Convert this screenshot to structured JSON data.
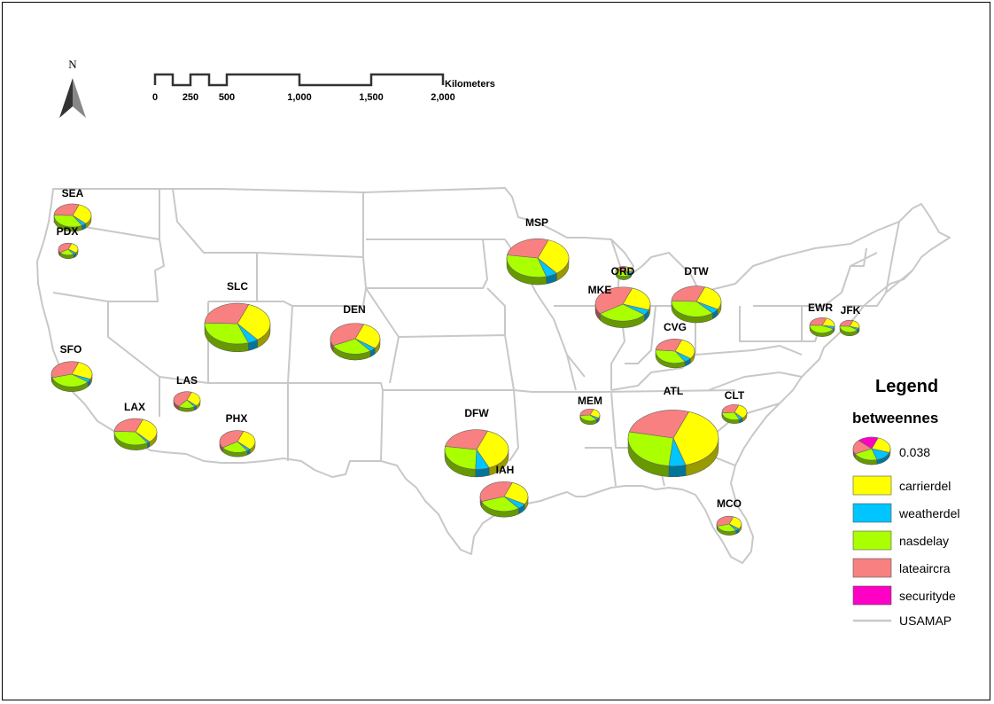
{
  "north_arrow": {
    "label": "N"
  },
  "scale_bar": {
    "unit": "Kilometers",
    "ticks": [
      "0",
      "250",
      "500",
      "1,000",
      "1,500",
      "2,000"
    ]
  },
  "legend": {
    "title": "Legend",
    "field": "betweennes",
    "size_value": "0.038",
    "items": [
      {
        "label": "carrierdel",
        "color": "#ffff00"
      },
      {
        "label": "weatherdel",
        "color": "#00c5ff"
      },
      {
        "label": "nasdelay",
        "color": "#aaff00"
      },
      {
        "label": "lateaircra",
        "color": "#f88080"
      },
      {
        "label": "securityde",
        "color": "#ff00c5"
      }
    ],
    "line_item": {
      "label": "USAMAP",
      "color": "#c8c8c8"
    }
  },
  "airports": [
    {
      "code": "SEA",
      "carrierdel": 0.32,
      "weatherdel": 0.04,
      "nasdelay": 0.34,
      "lateaircra": 0.3,
      "securityde": 0.0
    },
    {
      "code": "PDX",
      "carrierdel": 0.3,
      "weatherdel": 0.05,
      "nasdelay": 0.25,
      "lateaircra": 0.4,
      "securityde": 0.0
    },
    {
      "code": "SFO",
      "carrierdel": 0.26,
      "weatherdel": 0.04,
      "nasdelay": 0.35,
      "lateaircra": 0.35,
      "securityde": 0.0
    },
    {
      "code": "LAX",
      "carrierdel": 0.33,
      "weatherdel": 0.02,
      "nasdelay": 0.35,
      "lateaircra": 0.3,
      "securityde": 0.0
    },
    {
      "code": "LAS",
      "carrierdel": 0.32,
      "weatherdel": 0.03,
      "nasdelay": 0.2,
      "lateaircra": 0.45,
      "securityde": 0.0
    },
    {
      "code": "PHX",
      "carrierdel": 0.32,
      "weatherdel": 0.03,
      "nasdelay": 0.25,
      "lateaircra": 0.4,
      "securityde": 0.0
    },
    {
      "code": "SLC",
      "carrierdel": 0.34,
      "weatherdel": 0.05,
      "nasdelay": 0.31,
      "lateaircra": 0.3,
      "securityde": 0.0
    },
    {
      "code": "DEN",
      "carrierdel": 0.3,
      "weatherdel": 0.04,
      "nasdelay": 0.28,
      "lateaircra": 0.38,
      "securityde": 0.0
    },
    {
      "code": "DFW",
      "carrierdel": 0.38,
      "weatherdel": 0.07,
      "nasdelay": 0.27,
      "lateaircra": 0.28,
      "securityde": 0.0
    },
    {
      "code": "IAH",
      "carrierdel": 0.28,
      "weatherdel": 0.06,
      "nasdelay": 0.3,
      "lateaircra": 0.36,
      "securityde": 0.0
    },
    {
      "code": "MSP",
      "carrierdel": 0.34,
      "weatherdel": 0.06,
      "nasdelay": 0.32,
      "lateaircra": 0.28,
      "securityde": 0.0
    },
    {
      "code": "ORD",
      "carrierdel": 0.2,
      "weatherdel": 0.1,
      "nasdelay": 0.45,
      "lateaircra": 0.25,
      "securityde": 0.0
    },
    {
      "code": "MKE",
      "carrierdel": 0.25,
      "weatherdel": 0.05,
      "nasdelay": 0.3,
      "lateaircra": 0.4,
      "securityde": 0.0
    },
    {
      "code": "DTW",
      "carrierdel": 0.28,
      "weatherdel": 0.05,
      "nasdelay": 0.37,
      "lateaircra": 0.3,
      "securityde": 0.0
    },
    {
      "code": "CVG",
      "carrierdel": 0.3,
      "weatherdel": 0.06,
      "nasdelay": 0.35,
      "lateaircra": 0.29,
      "securityde": 0.0
    },
    {
      "code": "MEM",
      "carrierdel": 0.28,
      "weatherdel": 0.05,
      "nasdelay": 0.35,
      "lateaircra": 0.32,
      "securityde": 0.0
    },
    {
      "code": "ATL",
      "carrierdel": 0.4,
      "weatherdel": 0.06,
      "nasdelay": 0.27,
      "lateaircra": 0.27,
      "securityde": 0.0
    },
    {
      "code": "CLT",
      "carrierdel": 0.33,
      "weatherdel": 0.05,
      "nasdelay": 0.3,
      "lateaircra": 0.32,
      "securityde": 0.0
    },
    {
      "code": "MCO",
      "carrierdel": 0.3,
      "weatherdel": 0.05,
      "nasdelay": 0.3,
      "lateaircra": 0.35,
      "securityde": 0.0
    },
    {
      "code": "EWR",
      "carrierdel": 0.22,
      "weatherdel": 0.05,
      "nasdelay": 0.43,
      "lateaircra": 0.3,
      "securityde": 0.0
    },
    {
      "code": "JFK",
      "carrierdel": 0.25,
      "weatherdel": 0.05,
      "nasdelay": 0.4,
      "lateaircra": 0.3,
      "securityde": 0.0
    }
  ]
}
